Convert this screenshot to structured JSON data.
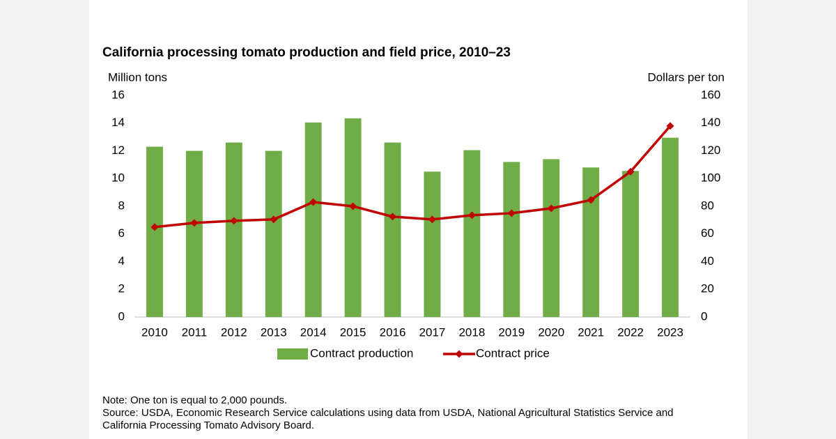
{
  "chart_data": {
    "type": "bar-line",
    "title": "California processing tomato production and field price, 2010–23",
    "ylabel": "Million tons",
    "y2label": "Dollars per ton",
    "categories": [
      "2010",
      "2011",
      "2012",
      "2013",
      "2014",
      "2015",
      "2016",
      "2017",
      "2018",
      "2019",
      "2020",
      "2021",
      "2022",
      "2023"
    ],
    "series": [
      {
        "name": "Contract production",
        "type": "bar",
        "color": "#70ad47",
        "values": [
          12.3,
          12.0,
          12.6,
          12.0,
          14.05,
          14.35,
          12.6,
          10.5,
          12.05,
          11.2,
          11.4,
          10.8,
          10.55,
          12.95
        ]
      },
      {
        "name": "Contract price",
        "type": "line",
        "axis": "y2",
        "color": "#c00000",
        "values": [
          65,
          68,
          69.5,
          70.5,
          83,
          80,
          72.5,
          70.5,
          73.5,
          75,
          78.5,
          84.5,
          105,
          138
        ]
      }
    ],
    "ylim": [
      0,
      16
    ],
    "yticks": [
      0,
      2,
      4,
      6,
      8,
      10,
      12,
      14,
      16
    ],
    "y2lim": [
      0,
      160
    ],
    "y2ticks": [
      0,
      20,
      40,
      60,
      80,
      100,
      120,
      140,
      160
    ],
    "grid": false,
    "legend": "bottom",
    "notes": [
      "Note: One ton is equal to 2,000 pounds.",
      "Source: USDA, Economic Research Service calculations using data from USDA, National Agricultural Statistics Service and",
      "California Processing Tomato Advisory Board."
    ]
  }
}
